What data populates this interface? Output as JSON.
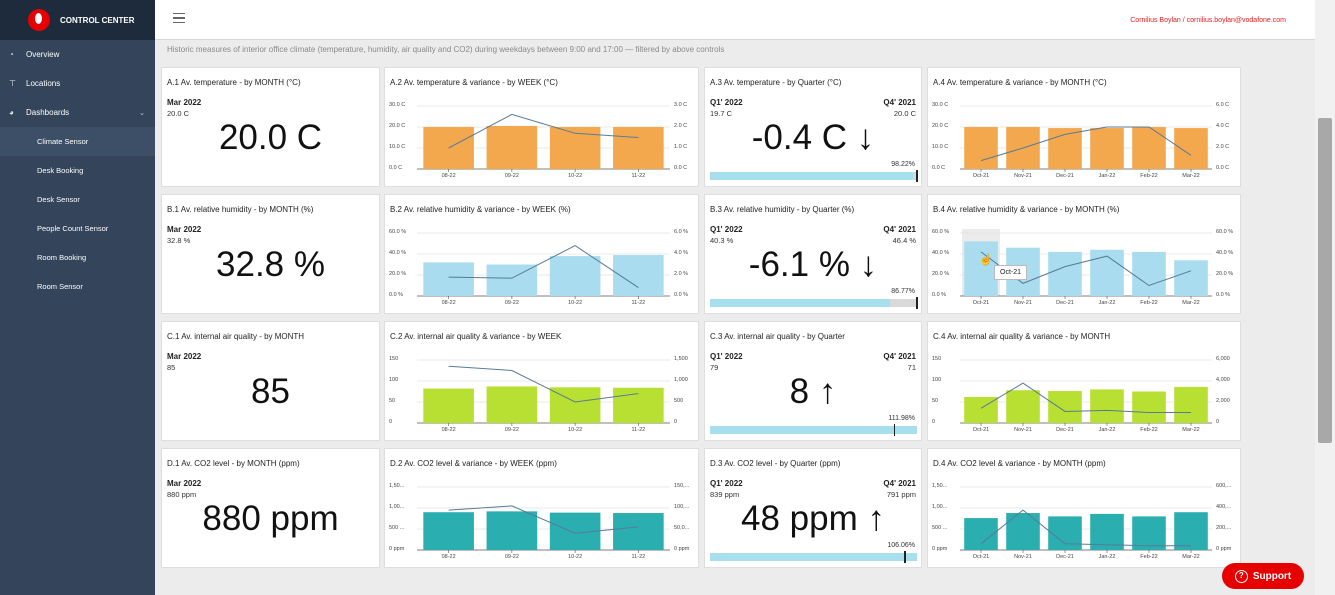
{
  "app": {
    "title": "CONTROL CENTER",
    "user": "Cornilius Boylan / cornilius.boylan@vodafone.com",
    "support": "Support",
    "subtitle": "Historic measures of interior office climate (temperature, humidity, air quality and CO2) during weekdays between 9:00 and 17:00 — filtered by above controls"
  },
  "nav": [
    {
      "label": "Overview",
      "icon": "dashboard-icon"
    },
    {
      "label": "Locations",
      "icon": "signpost-icon"
    },
    {
      "label": "Dashboards",
      "icon": "palette-icon"
    }
  ],
  "subnav": [
    "Climate Sensor",
    "Desk Booking",
    "Desk Sensor",
    "People Count Sensor",
    "Room Booking",
    "Room Sensor"
  ],
  "colors": {
    "temp": "#f4a84e",
    "hum": "#a8dcee",
    "air": "#b7e032",
    "co2": "#2aaeb0",
    "accent": "#e60000",
    "sidebar": "#33445b"
  },
  "rows": [
    {
      "single": {
        "title": "A.1 Av. temperature - by MONTH (°C)",
        "period": "Mar 2022",
        "sub": "20.0 C",
        "value": "20.0 C"
      },
      "weekly": {
        "title": "A.2 Av. temperature & variance - by WEEK (°C)",
        "left_ticks": [
          "30.0 C",
          "20.0 C",
          "10.0 C",
          "0.0 C"
        ],
        "right_ticks": [
          "3.0 C",
          "2.0 C",
          "1.0 C",
          "0.0 C"
        ],
        "categories": [
          "08-22",
          "09-22",
          "10-22",
          "11-22"
        ],
        "bars": [
          20,
          20.5,
          20,
          20
        ],
        "line": [
          1,
          2.6,
          1.7,
          1.5
        ],
        "ymax": 30,
        "rmax": 3
      },
      "quarter": {
        "title": "A.3 Av. temperature - by Quarter (°C)",
        "q1": "Q1' 2022",
        "q1v": "19.7 C",
        "q4": "Q4' 2021",
        "q4v": "20.0 C",
        "delta": "-0.4 C ↓",
        "pct": "98.22%",
        "pctv": 98.22
      },
      "monthly": {
        "title": "A.4 Av. temperature & variance - by MONTH (°C)",
        "left_ticks": [
          "30.0 C",
          "20.0 C",
          "10.0 C",
          "0.0 C"
        ],
        "right_ticks": [
          "6.0 C",
          "4.0 C",
          "2.0 C",
          "0.0 C"
        ],
        "categories": [
          "Oct-21",
          "Nov-21",
          "Dec-21",
          "Jan-22",
          "Feb-22",
          "Mar-22"
        ],
        "bars": [
          20,
          20,
          19.5,
          19.5,
          20,
          19.5
        ],
        "line": [
          0.8,
          2,
          3.3,
          4,
          4,
          1.3
        ],
        "ymax": 30,
        "rmax": 6
      }
    },
    {
      "single": {
        "title": "B.1 Av. relative humidity - by MONTH (%)",
        "period": "Mar 2022",
        "sub": "32.8 %",
        "value": "32.8 %"
      },
      "weekly": {
        "title": "B.2 Av. relative humidity & variance - by WEEK (%)",
        "left_ticks": [
          "60.0 %",
          "40.0 %",
          "20.0 %",
          "0.0 %"
        ],
        "right_ticks": [
          "6.0 %",
          "4.0 %",
          "2.0 %",
          "0.0 %"
        ],
        "categories": [
          "08-22",
          "09-22",
          "10-22",
          "11-22"
        ],
        "bars": [
          32,
          30,
          38,
          39
        ],
        "line": [
          1.8,
          1.7,
          4.8,
          0.8
        ],
        "ymax": 60,
        "rmax": 6
      },
      "quarter": {
        "title": "B.3 Av. relative humidity - by Quarter (%)",
        "q1": "Q1' 2022",
        "q1v": "40.3 %",
        "q4": "Q4' 2021",
        "q4v": "46.4 %",
        "delta": "-6.1 % ↓",
        "pct": "86.77%",
        "pctv": 86.77
      },
      "monthly": {
        "title": "B.4 Av. relative humidity & variance - by MONTH (%)",
        "left_ticks": [
          "60.0 %",
          "40.0 %",
          "20.0 %",
          "0.0 %"
        ],
        "right_ticks": [
          "60.0 %",
          "40.0 %",
          "20.0 %",
          "0.0 %"
        ],
        "categories": [
          "Oct-21",
          "Nov-21",
          "Dec-21",
          "Jan-22",
          "Feb-22",
          "Mar-22"
        ],
        "bars": [
          52,
          46,
          42,
          44,
          42,
          34
        ],
        "line": [
          42,
          12,
          28,
          38,
          10,
          24
        ],
        "ymax": 60,
        "rmax": 60,
        "tooltip": "Oct-21"
      }
    },
    {
      "single": {
        "title": "C.1 Av. internal air quality - by MONTH",
        "period": "Mar 2022",
        "sub": "85",
        "value": "85"
      },
      "weekly": {
        "title": "C.2 Av. internal air quality & variance - by WEEK",
        "left_ticks": [
          "150",
          "100",
          "50",
          "0"
        ],
        "right_ticks": [
          "1,500",
          "1,000",
          "500",
          "0"
        ],
        "categories": [
          "08-22",
          "09-22",
          "10-22",
          "11-22"
        ],
        "bars": [
          82,
          87,
          85,
          84
        ],
        "line": [
          1350,
          1250,
          500,
          700
        ],
        "ymax": 150,
        "rmax": 1500
      },
      "quarter": {
        "title": "C.3 Av. internal air quality - by Quarter",
        "q1": "Q1' 2022",
        "q1v": "79",
        "q4": "Q4' 2021",
        "q4v": "71",
        "delta": "8 ↑",
        "pct": "111.98%",
        "pctv": 111.98
      },
      "monthly": {
        "title": "C.4 Av. internal air quality & variance - by MONTH",
        "left_ticks": [
          "150",
          "100",
          "50",
          "0"
        ],
        "right_ticks": [
          "6,000",
          "4,000",
          "2,000",
          "0"
        ],
        "categories": [
          "Oct-21",
          "Nov-21",
          "Dec-21",
          "Jan-22",
          "Feb-22",
          "Mar-22"
        ],
        "bars": [
          62,
          78,
          76,
          80,
          75,
          86
        ],
        "line": [
          1400,
          3800,
          1100,
          1200,
          1000,
          1000
        ],
        "ymax": 150,
        "rmax": 6000
      }
    },
    {
      "single": {
        "title": "D.1 Av. CO2 level - by MONTH (ppm)",
        "period": "Mar 2022",
        "sub": "880 ppm",
        "value": "880 ppm"
      },
      "weekly": {
        "title": "D.2 Av. CO2 level & variance - by WEEK (ppm)",
        "left_ticks": [
          "1,50...",
          "1,00...",
          "500 ...",
          "0 ppm"
        ],
        "right_ticks": [
          "150,...",
          "100,...",
          "50,0...",
          "0 ppm"
        ],
        "categories": [
          "08-22",
          "09-22",
          "10-22",
          "11-22"
        ],
        "bars": [
          900,
          920,
          890,
          880
        ],
        "line": [
          95000,
          105000,
          40000,
          55000
        ],
        "ymax": 1500,
        "rmax": 150000
      },
      "quarter": {
        "title": "D.3 Av. CO2 level - by Quarter (ppm)",
        "q1": "Q1' 2022",
        "q1v": "839 ppm",
        "q4": "Q4' 2021",
        "q4v": "791 ppm",
        "delta": "48 ppm ↑",
        "pct": "106.06%",
        "pctv": 106.06
      },
      "monthly": {
        "title": "D.4 Av. CO2 level & variance - by MONTH (ppm)",
        "left_ticks": [
          "1,50...",
          "1,00...",
          "500 ...",
          "0 ppm"
        ],
        "right_ticks": [
          "600,...",
          "400,...",
          "200,...",
          "0 ppm"
        ],
        "categories": [
          "Oct-21",
          "Nov-21",
          "Dec-21",
          "Jan-22",
          "Feb-22",
          "Mar-22"
        ],
        "bars": [
          760,
          880,
          800,
          860,
          800,
          900
        ],
        "line": [
          60000,
          380000,
          60000,
          50000,
          40000,
          40000
        ],
        "ymax": 1500,
        "rmax": 600000
      }
    }
  ]
}
